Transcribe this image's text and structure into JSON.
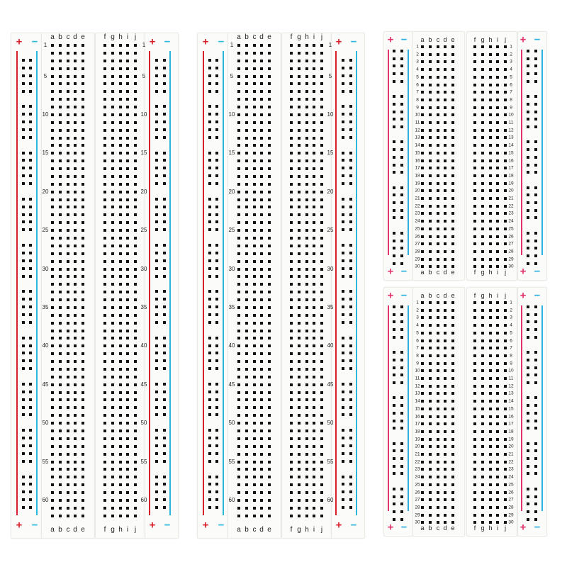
{
  "colors": {
    "plus_large": "#d8202a",
    "minus_large": "#29b8dc",
    "plus_small": "#e2336e",
    "minus_small": "#29b0e0",
    "hole": "#111111"
  },
  "symbols": {
    "plus": "+",
    "minus": "−"
  },
  "columns_left": [
    "a",
    "b",
    "c",
    "d",
    "e"
  ],
  "columns_right": [
    "f",
    "g",
    "h",
    "i",
    "j"
  ],
  "large_boards": {
    "count": 2,
    "rows": 63,
    "row_labels": [
      "1",
      "5",
      "10",
      "15",
      "20",
      "25",
      "30",
      "35",
      "40",
      "45",
      "50",
      "55",
      "60"
    ]
  },
  "small_boards": {
    "count": 2,
    "rows": 30,
    "row_labels": [
      "1",
      "2",
      "3",
      "4",
      "5",
      "6",
      "7",
      "8",
      "9",
      "10",
      "11",
      "12",
      "13",
      "14",
      "15",
      "16",
      "17",
      "18",
      "19",
      "20",
      "21",
      "22",
      "23",
      "24",
      "25",
      "26",
      "27",
      "28",
      "29",
      "30"
    ]
  }
}
